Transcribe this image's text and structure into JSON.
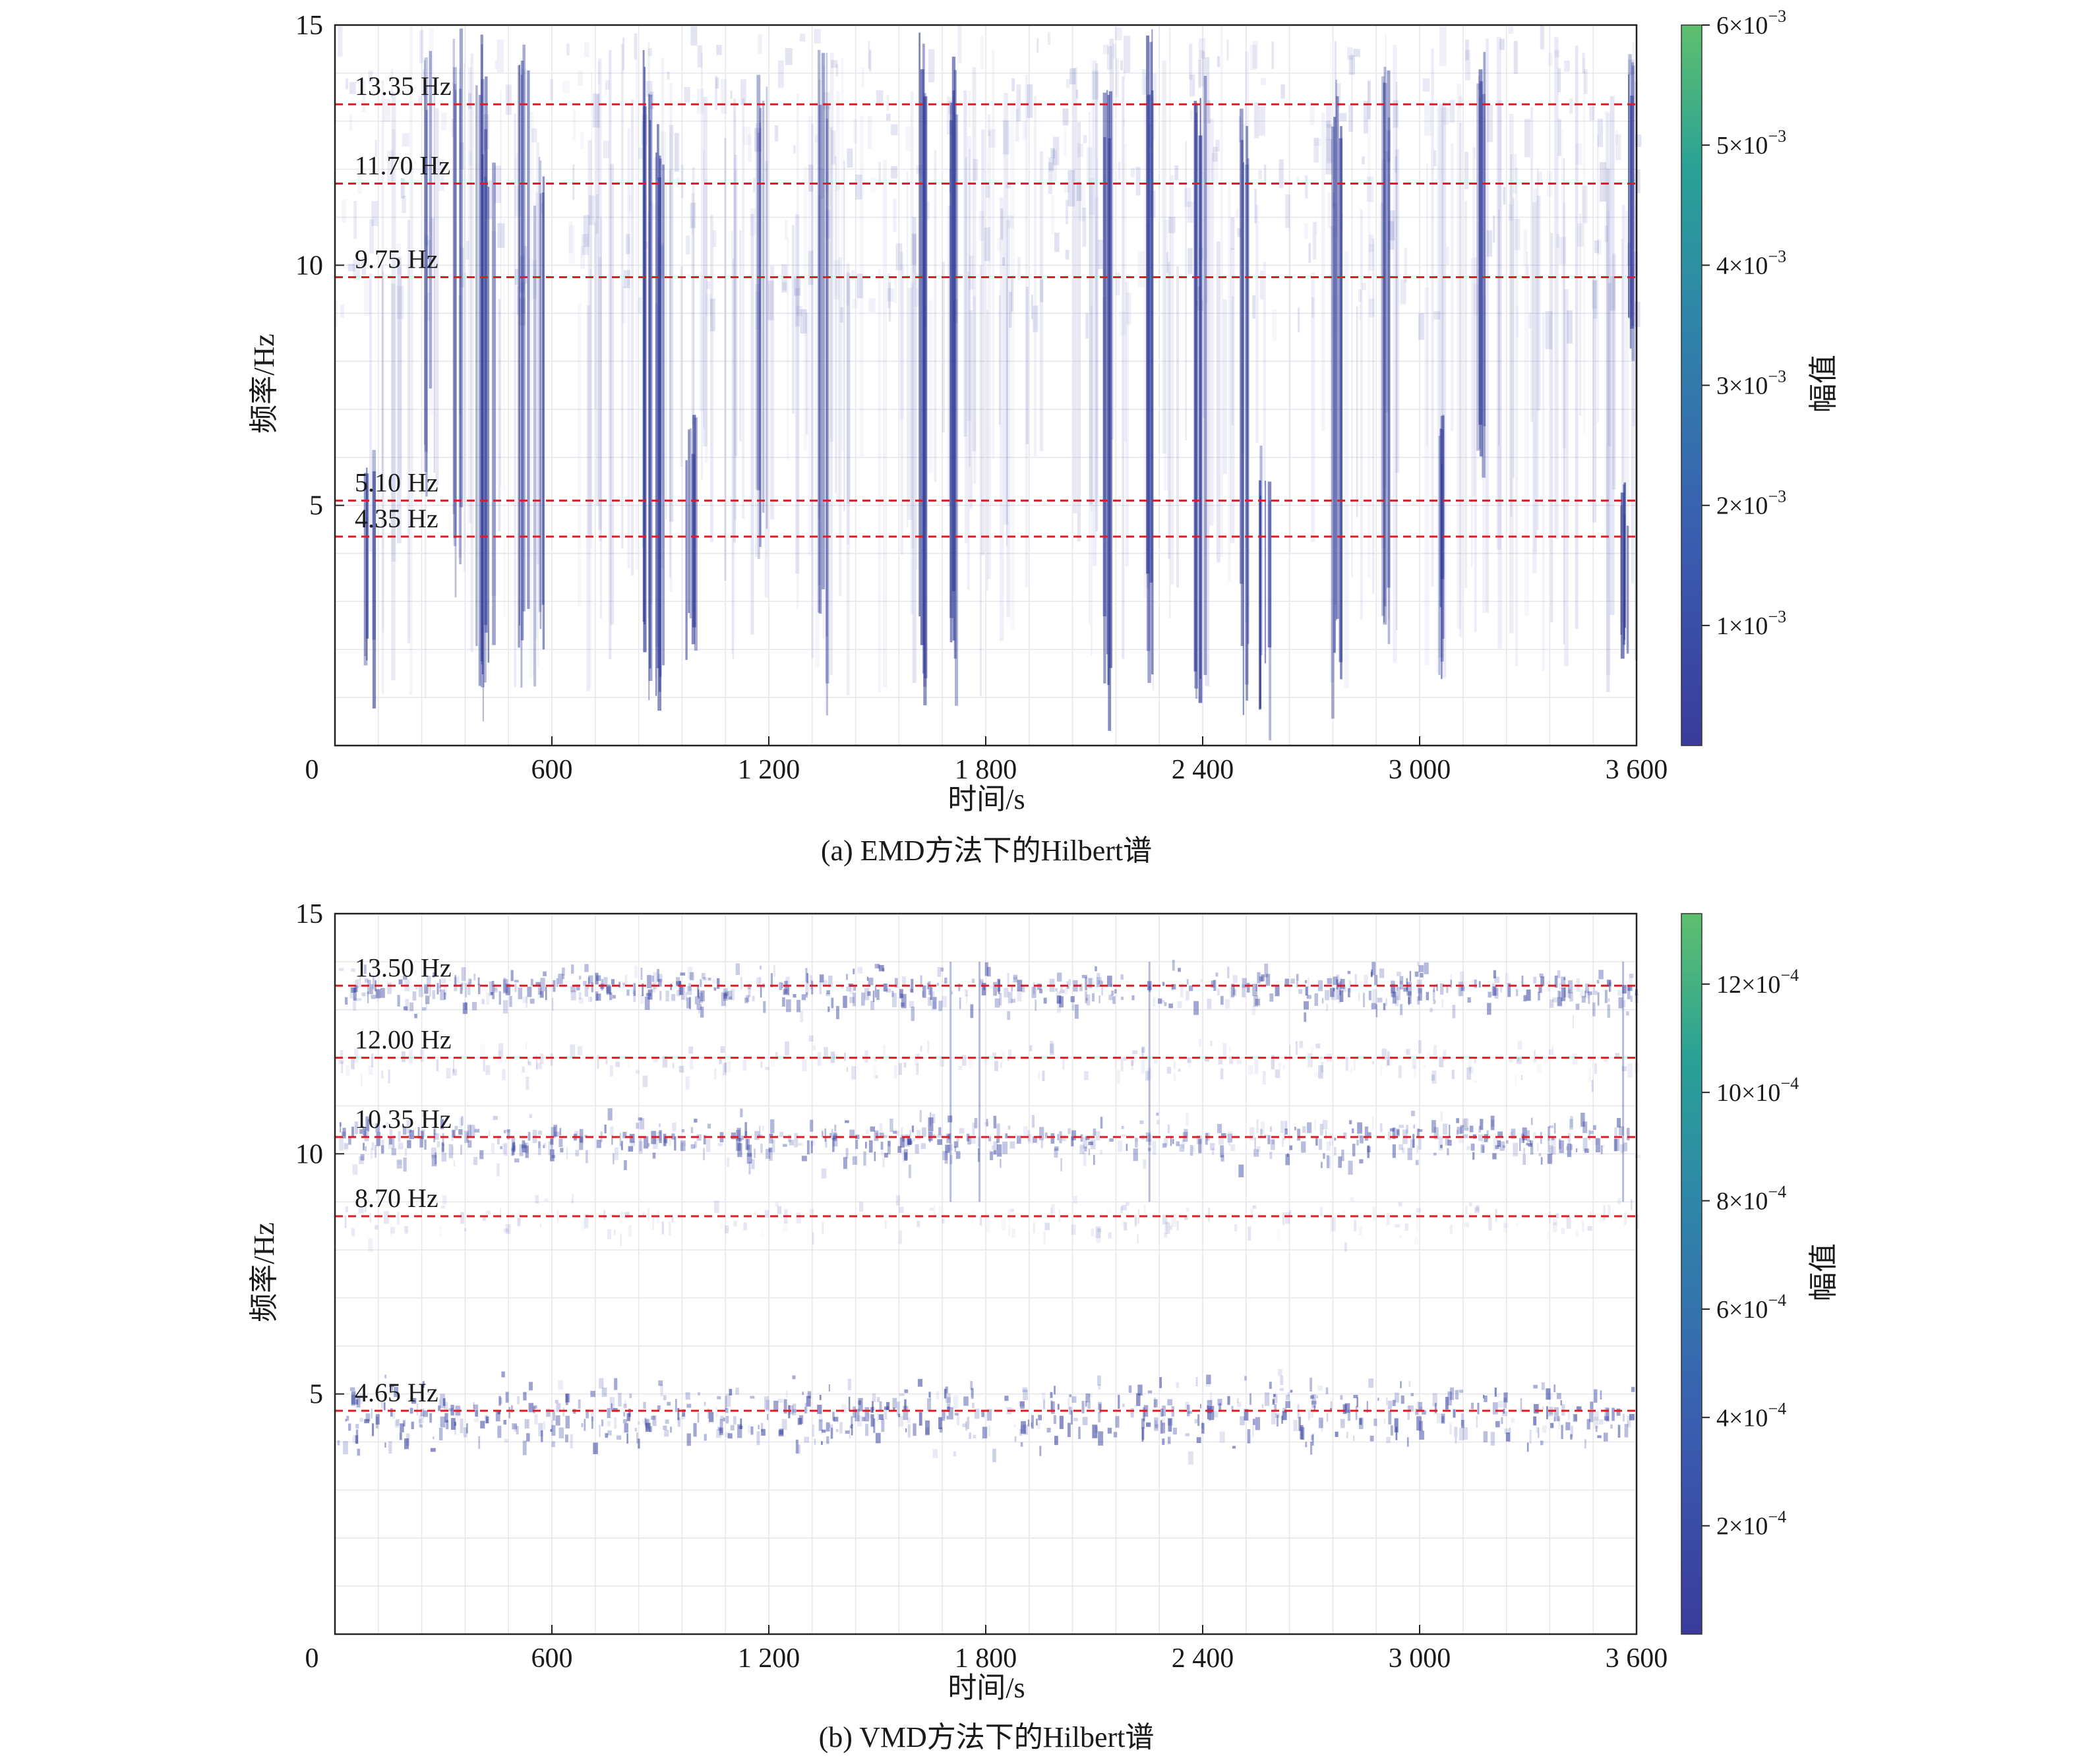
{
  "chart_data": [
    {
      "type": "heatmap",
      "panel": "a",
      "caption": "(a) EMD方法下的Hilbert谱",
      "xlabel": "时间/s",
      "ylabel": "频率/Hz",
      "xlim": [
        0,
        3600
      ],
      "ylim": [
        0,
        15
      ],
      "xticks": [
        0,
        600,
        1200,
        1800,
        2400,
        3000,
        3600
      ],
      "xtick_labels": [
        "0",
        "600",
        "1 200",
        "1 800",
        "2 400",
        "3 000",
        "3 600"
      ],
      "yticks": [
        5,
        10,
        15
      ],
      "ytick_labels": [
        "5",
        "10",
        "15"
      ],
      "grid": true,
      "colorbar": {
        "label": "幅值",
        "range": [
          0,
          0.006
        ],
        "ticks": [
          {
            "value": 0.001,
            "mantissa": "1×10",
            "exponent": "−3"
          },
          {
            "value": 0.002,
            "mantissa": "2×10",
            "exponent": "−3"
          },
          {
            "value": 0.003,
            "mantissa": "3×10",
            "exponent": "−3"
          },
          {
            "value": 0.004,
            "mantissa": "4×10",
            "exponent": "−3"
          },
          {
            "value": 0.005,
            "mantissa": "5×10",
            "exponent": "−3"
          },
          {
            "value": 0.006,
            "mantissa": "6×10",
            "exponent": "−3"
          }
        ]
      },
      "reference_lines": [
        {
          "freq": 13.35,
          "label": "13.35 Hz"
        },
        {
          "freq": 11.7,
          "label": "11.70 Hz"
        },
        {
          "freq": 9.75,
          "label": "9.75 Hz"
        },
        {
          "freq": 5.1,
          "label": "5.10 Hz"
        },
        {
          "freq": 4.35,
          "label": "4.35 Hz"
        }
      ],
      "pattern": "broadband",
      "bursts": [
        {
          "t": 90,
          "f_low": 1.2,
          "f_high": 6.5,
          "intensity": 0.8
        },
        {
          "t": 260,
          "f_low": 5.5,
          "f_high": 14.5,
          "intensity": 0.5
        },
        {
          "t": 330,
          "f_low": 4.0,
          "f_high": 15.0,
          "intensity": 0.6
        },
        {
          "t": 400,
          "f_low": 1.5,
          "f_high": 15.0,
          "intensity": 0.9
        },
        {
          "t": 420,
          "f_low": 1.6,
          "f_high": 13.0,
          "intensity": 0.85
        },
        {
          "t": 520,
          "f_low": 1.8,
          "f_high": 15.0,
          "intensity": 0.8
        },
        {
          "t": 560,
          "f_low": 2.0,
          "f_high": 12.5,
          "intensity": 0.7
        },
        {
          "t": 860,
          "f_low": 1.0,
          "f_high": 14.5,
          "intensity": 0.85
        },
        {
          "t": 900,
          "f_low": 0.8,
          "f_high": 13.0,
          "intensity": 0.9
        },
        {
          "t": 980,
          "f_low": 1.5,
          "f_high": 7.0,
          "intensity": 0.85
        },
        {
          "t": 1180,
          "f_low": 4.0,
          "f_high": 14.0,
          "intensity": 0.6
        },
        {
          "t": 1350,
          "f_low": 1.8,
          "f_high": 14.5,
          "intensity": 0.6
        },
        {
          "t": 1620,
          "f_low": 1.5,
          "f_high": 15.0,
          "intensity": 0.9
        },
        {
          "t": 1700,
          "f_low": 2.0,
          "f_high": 14.5,
          "intensity": 0.8
        },
        {
          "t": 2130,
          "f_low": 1.0,
          "f_high": 14.0,
          "intensity": 0.75
        },
        {
          "t": 2250,
          "f_low": 2.5,
          "f_high": 15.0,
          "intensity": 0.8
        },
        {
          "t": 2390,
          "f_low": 1.3,
          "f_high": 14.0,
          "intensity": 0.85
        },
        {
          "t": 2510,
          "f_low": 1.5,
          "f_high": 13.5,
          "intensity": 0.85
        },
        {
          "t": 2570,
          "f_low": 1.2,
          "f_high": 6.5,
          "intensity": 0.95
        },
        {
          "t": 2770,
          "f_low": 1.5,
          "f_high": 14.0,
          "intensity": 0.75
        },
        {
          "t": 2900,
          "f_low": 2.5,
          "f_high": 14.5,
          "intensity": 0.8
        },
        {
          "t": 3060,
          "f_low": 1.8,
          "f_high": 7.0,
          "intensity": 0.85
        },
        {
          "t": 3170,
          "f_low": 6.0,
          "f_high": 14.5,
          "intensity": 0.7
        },
        {
          "t": 3560,
          "f_low": 1.5,
          "f_high": 6.0,
          "intensity": 0.9
        },
        {
          "t": 3590,
          "f_low": 8.0,
          "f_high": 14.5,
          "intensity": 0.8
        }
      ]
    },
    {
      "type": "heatmap",
      "panel": "b",
      "caption": "(b) VMD方法下的Hilbert谱",
      "xlabel": "时间/s",
      "ylabel": "频率/Hz",
      "xlim": [
        0,
        3600
      ],
      "ylim": [
        0,
        15
      ],
      "xticks": [
        0,
        600,
        1200,
        1800,
        2400,
        3000,
        3600
      ],
      "xtick_labels": [
        "0",
        "600",
        "1 200",
        "1 800",
        "2 400",
        "3 000",
        "3 600"
      ],
      "yticks": [
        5,
        10,
        15
      ],
      "ytick_labels": [
        "5",
        "10",
        "15"
      ],
      "grid": true,
      "colorbar": {
        "label": "幅值",
        "range": [
          0,
          0.00133
        ],
        "ticks": [
          {
            "value": 0.0002,
            "mantissa": "2×10",
            "exponent": "−4"
          },
          {
            "value": 0.0004,
            "mantissa": "4×10",
            "exponent": "−4"
          },
          {
            "value": 0.0006,
            "mantissa": "6×10",
            "exponent": "−4"
          },
          {
            "value": 0.0008,
            "mantissa": "8×10",
            "exponent": "−4"
          },
          {
            "value": 0.001,
            "mantissa": "10×10",
            "exponent": "−4"
          },
          {
            "value": 0.0012,
            "mantissa": "12×10",
            "exponent": "−4"
          }
        ]
      },
      "reference_lines": [
        {
          "freq": 13.5,
          "label": "13.50 Hz"
        },
        {
          "freq": 12.0,
          "label": "12.00 Hz"
        },
        {
          "freq": 10.35,
          "label": "10.35 Hz"
        },
        {
          "freq": 8.7,
          "label": "8.70 Hz"
        },
        {
          "freq": 4.65,
          "label": "4.65 Hz"
        }
      ],
      "pattern": "banded",
      "bands": [
        {
          "freq": 13.5,
          "spread": 0.35,
          "density": 0.85
        },
        {
          "freq": 12.0,
          "spread": 0.3,
          "density": 0.3
        },
        {
          "freq": 10.35,
          "spread": 0.4,
          "density": 0.85
        },
        {
          "freq": 8.7,
          "spread": 0.35,
          "density": 0.25
        },
        {
          "freq": 4.65,
          "spread": 0.55,
          "density": 0.95
        }
      ]
    }
  ]
}
